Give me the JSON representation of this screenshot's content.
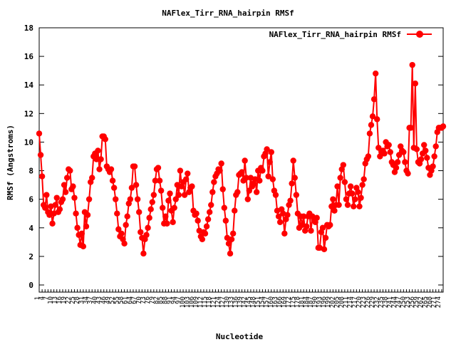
{
  "chart_data": {
    "type": "line",
    "title": "NAFlex_Tirr_RNA_hairpin RMSf",
    "xlabel": "Nucleotide",
    "ylabel": "RMSf (Angstroms)",
    "ylim": [
      -0.5,
      18
    ],
    "yticks": [
      0,
      2,
      4,
      6,
      8,
      10,
      12,
      14,
      16,
      18
    ],
    "grid": false,
    "legend_position": "top-right",
    "series": [
      {
        "name": "NAFlex_Tirr_RNA_hairpin RMSf",
        "color": "#ff0000",
        "marker": "filled-circle",
        "values": [
          10.6,
          9.1,
          7.6,
          5.6,
          5.4,
          6.3,
          5.1,
          4.9,
          5.5,
          4.3,
          5.0,
          5.6,
          6.1,
          5.1,
          5.3,
          5.8,
          6.0,
          7.0,
          6.5,
          7.5,
          8.1,
          8.0,
          6.7,
          6.9,
          6.1,
          5.0,
          4.0,
          3.5,
          2.8,
          3.6,
          2.7,
          5.1,
          4.1,
          4.9,
          6.0,
          7.2,
          7.5,
          9.0,
          9.2,
          8.8,
          9.4,
          8.1,
          8.8,
          10.4,
          10.4,
          10.2,
          8.3,
          8.1,
          7.9,
          8.1,
          7.3,
          6.8,
          6.0,
          5.0,
          3.9,
          3.4,
          3.6,
          3.2,
          2.9,
          4.2,
          4.8,
          5.7,
          6.0,
          6.8,
          8.3,
          8.3,
          7.0,
          6.0,
          5.1,
          3.7,
          3.3,
          2.2,
          3.2,
          3.5,
          4.0,
          4.7,
          5.3,
          5.8,
          6.3,
          7.3,
          8.1,
          8.2,
          7.3,
          6.6,
          5.4,
          4.3,
          4.8,
          4.3,
          5.9,
          6.4,
          5.2,
          4.4,
          5.4,
          6.0,
          7.0,
          6.3,
          8.0,
          6.9,
          7.2,
          6.3,
          7.4,
          7.8,
          6.5,
          6.8,
          6.9,
          5.2,
          4.9,
          5.0,
          4.5,
          3.8,
          3.4,
          3.2,
          3.7,
          3.6,
          4.1,
          4.6,
          5.1,
          5.6,
          6.5,
          7.2,
          7.6,
          7.8,
          8.1,
          8.0,
          8.5,
          6.7,
          5.4,
          4.5,
          3.3,
          2.9,
          2.2,
          3.2,
          3.6,
          5.2,
          6.3,
          6.5,
          7.7,
          7.8,
          7.9,
          7.3,
          8.7,
          7.5,
          6.0,
          6.6,
          7.5,
          6.9,
          7.1,
          7.4,
          6.5,
          8.0,
          7.3,
          8.2,
          8.0,
          9.0,
          9.2,
          9.5,
          7.6,
          8.6,
          9.3,
          7.4,
          6.6,
          6.3,
          5.2,
          4.8,
          4.4,
          5.3,
          5.0,
          3.6,
          4.6,
          4.9,
          5.6,
          5.9,
          7.1,
          8.7,
          7.5,
          6.3,
          5.0,
          4.0,
          4.8,
          4.2,
          4.8,
          3.8,
          4.1,
          4.8,
          5.0,
          3.8,
          4.8,
          4.6,
          4.4,
          4.7,
          2.6,
          2.6,
          3.7,
          4.0,
          2.5,
          3.3,
          4.2,
          4.1,
          4.2,
          5.5,
          6.0,
          5.2,
          5.6,
          6.9,
          5.6,
          7.5,
          8.1,
          8.4,
          7.2,
          6.0,
          5.6,
          6.4,
          6.9,
          6.4,
          5.5,
          6.0,
          6.8,
          6.5,
          5.5,
          6.1,
          7.0,
          7.4,
          8.5,
          8.8,
          9.0,
          10.6,
          11.2,
          11.8,
          13.0,
          14.8,
          11.6,
          9.6,
          9.0,
          9.3,
          9.4,
          9.2,
          10.0,
          9.7,
          9.8,
          9.3,
          8.6,
          8.4,
          7.9,
          8.2,
          8.6,
          9.1,
          9.7,
          9.4,
          9.3,
          8.6,
          8.0,
          7.8,
          11.0,
          11.0,
          15.4,
          9.6,
          14.1,
          9.5,
          8.6,
          8.5,
          8.8,
          9.2,
          9.8,
          9.4,
          8.9,
          8.2,
          7.7,
          8.0,
          8.3,
          9.0,
          9.7,
          10.7,
          11.0,
          11.0,
          11.0,
          11.1
        ]
      }
    ]
  }
}
